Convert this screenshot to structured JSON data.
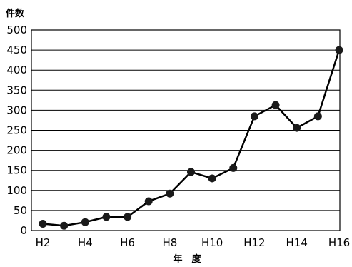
{
  "chart_data": {
    "type": "line",
    "ylabel": "件数",
    "xlabel": "年　度",
    "ylim": [
      0,
      500
    ],
    "yticks": [
      0,
      50,
      100,
      150,
      200,
      250,
      300,
      350,
      400,
      450,
      500
    ],
    "xtick_labels": [
      "H2",
      "H4",
      "H6",
      "H8",
      "H10",
      "H12",
      "H14",
      "H16"
    ],
    "grid": "horizontal",
    "categories": [
      "H2",
      "H3",
      "H4",
      "H5",
      "H6",
      "H7",
      "H8",
      "H9",
      "H10",
      "H11",
      "H12",
      "H13",
      "H14",
      "H15",
      "H16"
    ],
    "series": [
      {
        "values": [
          17,
          12,
          21,
          34,
          34,
          73,
          92,
          146,
          130,
          156,
          285,
          313,
          256,
          285,
          450
        ]
      }
    ],
    "line_color": "#000000",
    "marker_color": "#1a1a1a"
  }
}
